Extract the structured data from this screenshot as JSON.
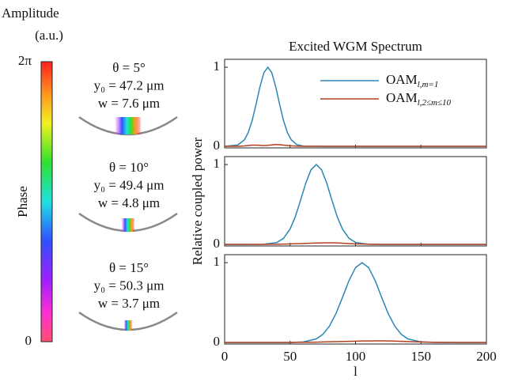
{
  "colorbar": {
    "title": [
      "Amplitude",
      "(a.u.)"
    ],
    "label": "Phase",
    "ylim": [
      0,
      6.283
    ],
    "yticks": [
      {
        "value": 6.283,
        "label": "2π"
      },
      0
    ]
  },
  "annotations": [
    {
      "theta": "θ = 5°",
      "y0": "y₀ = 47.2 μm",
      "w": "w = 7.6 μm"
    },
    {
      "theta": "θ = 10°",
      "y0": "y₀ = 49.4 μm",
      "w": "w = 4.8 μm"
    },
    {
      "theta": "θ = 15°",
      "y0": "y₀ = 50.3 μm",
      "w": "w = 3.7 μm"
    }
  ],
  "chart_data": [
    {
      "type": "line",
      "title": "Excited WGM Spectrum",
      "xlim": [
        0,
        200
      ],
      "ylim": [
        -0.02,
        1.1
      ],
      "yticks": [
        0,
        1
      ],
      "legend": "upper right",
      "x": [
        0,
        10,
        15,
        18,
        21,
        24,
        27,
        30,
        33,
        36,
        39,
        42,
        45,
        48,
        51,
        55,
        60,
        80,
        100,
        120,
        140,
        160,
        180,
        200
      ],
      "series": [
        {
          "name": "OAM",
          "subscript": "l,m=1",
          "color": "#2b86b5",
          "values": [
            0,
            0.016,
            0.08,
            0.172,
            0.325,
            0.531,
            0.755,
            0.932,
            1,
            0.932,
            0.755,
            0.531,
            0.325,
            0.172,
            0.08,
            0.023,
            0.003,
            0,
            0,
            0,
            0,
            0,
            0,
            0
          ]
        },
        {
          "name": "OAM",
          "subscript": "l,2≤m≤10",
          "color": "#b5401f",
          "values": [
            0,
            0,
            0.005,
            0.01,
            0.015,
            0.015,
            0.012,
            0.01,
            0.012,
            0.018,
            0.022,
            0.02,
            0.015,
            0.01,
            0.006,
            0.003,
            0,
            0,
            0,
            0,
            0,
            0,
            0,
            0
          ]
        }
      ]
    },
    {
      "type": "line",
      "ylabel": "Relative coupled power",
      "xlim": [
        0,
        200
      ],
      "ylim": [
        -0.02,
        1.1
      ],
      "yticks": [
        0,
        1
      ],
      "xticks": [
        0,
        50,
        100,
        150,
        200
      ],
      "x": [
        0,
        20,
        30,
        40,
        45,
        50,
        54,
        58,
        62,
        66,
        70,
        74,
        78,
        82,
        86,
        90,
        95,
        100,
        110,
        120,
        140,
        160,
        180,
        200
      ],
      "series": [
        {
          "color": "#2b86b5",
          "values": [
            0,
            0,
            0.001,
            0.024,
            0.076,
            0.192,
            0.347,
            0.552,
            0.768,
            0.936,
            1,
            0.936,
            0.768,
            0.552,
            0.347,
            0.192,
            0.076,
            0.024,
            0.001,
            0,
            0,
            0,
            0,
            0
          ]
        },
        {
          "color": "#b5401f",
          "values": [
            0,
            0,
            0,
            0.002,
            0.004,
            0.006,
            0.008,
            0.01,
            0.012,
            0.015,
            0.017,
            0.019,
            0.02,
            0.02,
            0.018,
            0.015,
            0.01,
            0.006,
            0.002,
            0,
            0,
            0,
            0,
            0
          ]
        }
      ]
    },
    {
      "type": "line",
      "xlabel": "l",
      "xlim": [
        0,
        200
      ],
      "ylim": [
        -0.02,
        1.1
      ],
      "yticks": [
        0,
        1
      ],
      "xticks": [
        0,
        50,
        100,
        150,
        200
      ],
      "x": [
        0,
        40,
        50,
        60,
        70,
        75,
        80,
        85,
        90,
        95,
        100,
        105,
        110,
        115,
        120,
        125,
        130,
        135,
        140,
        150,
        160,
        180,
        200
      ],
      "series": [
        {
          "color": "#2b86b5",
          "values": [
            0,
            0,
            0,
            0.006,
            0.044,
            0.101,
            0.203,
            0.36,
            0.563,
            0.775,
            0.938,
            1,
            0.938,
            0.775,
            0.563,
            0.36,
            0.203,
            0.101,
            0.044,
            0.006,
            0,
            0,
            0
          ]
        },
        {
          "color": "#b5401f",
          "values": [
            0,
            0,
            0,
            0.002,
            0.004,
            0.006,
            0.008,
            0.01,
            0.012,
            0.014,
            0.016,
            0.018,
            0.019,
            0.02,
            0.02,
            0.019,
            0.017,
            0.014,
            0.011,
            0.006,
            0.002,
            0,
            0
          ]
        }
      ]
    }
  ]
}
